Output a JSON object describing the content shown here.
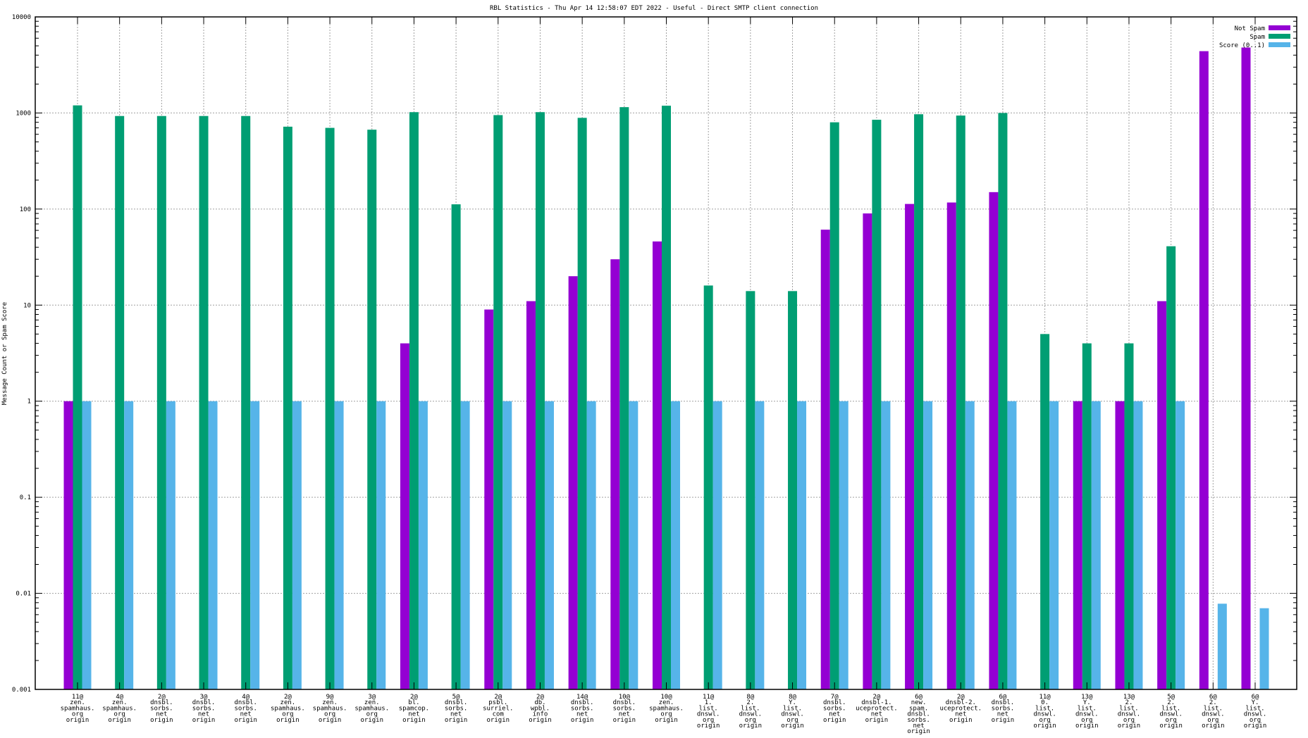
{
  "chart_data": {
    "type": "bar",
    "title": "RBL Statistics - Thu Apr 14 12:58:07 EDT 2022 - Useful - Direct SMTP client connection",
    "xlabel": "",
    "ylabel": "Message Count or Spam Score",
    "yscale": "log",
    "ylim": [
      0.001,
      10000
    ],
    "yticks": [
      "0.001",
      "0.01",
      "0.1",
      "1",
      "10",
      "100",
      "1000",
      "10000"
    ],
    "grid": true,
    "legend_position": "top-right",
    "categories": [
      [
        "11@",
        "zen.",
        "spamhaus.",
        "org",
        "origin"
      ],
      [
        "4@",
        "zen.",
        "spamhaus.",
        "org",
        "origin"
      ],
      [
        "2@",
        "dnsbl.",
        "sorbs.",
        "net",
        "origin"
      ],
      [
        "3@",
        "dnsbl.",
        "sorbs.",
        "net",
        "origin"
      ],
      [
        "4@",
        "dnsbl.",
        "sorbs.",
        "net",
        "origin"
      ],
      [
        "2@",
        "zen.",
        "spamhaus.",
        "org",
        "origin"
      ],
      [
        "9@",
        "zen.",
        "spamhaus.",
        "org",
        "origin"
      ],
      [
        "3@",
        "zen.",
        "spamhaus.",
        "org",
        "origin"
      ],
      [
        "2@",
        "bl.",
        "spamcop.",
        "net",
        "origin"
      ],
      [
        "5@",
        "dnsbl.",
        "sorbs.",
        "net",
        "origin"
      ],
      [
        "2@",
        "psbl.",
        "surriel.",
        "com",
        "origin"
      ],
      [
        "2@",
        "db.",
        "wpbl.",
        "info",
        "origin"
      ],
      [
        "14@",
        "dnsbl.",
        "sorbs.",
        "net",
        "origin"
      ],
      [
        "10@",
        "dnsbl.",
        "sorbs.",
        "net",
        "origin"
      ],
      [
        "10@",
        "zen.",
        "spamhaus.",
        "org",
        "origin"
      ],
      [
        "11@",
        "1.",
        "list.",
        "dnswl.",
        "org",
        "origin"
      ],
      [
        "8@",
        "2.",
        "list.",
        "dnswl.",
        "org",
        "origin"
      ],
      [
        "8@",
        "Y.",
        "list.",
        "dnswl.",
        "org",
        "origin"
      ],
      [
        "7@",
        "dnsbl.",
        "sorbs.",
        "net",
        "origin"
      ],
      [
        "2@",
        "dnsbl-1.",
        "uceprotect.",
        "net",
        "origin"
      ],
      [
        "6@",
        "new.",
        "spam.",
        "dnsbl.",
        "sorbs.",
        "net",
        "origin"
      ],
      [
        "2@",
        "dnsbl-2.",
        "uceprotect.",
        "net",
        "origin"
      ],
      [
        "6@",
        "dnsbl.",
        "sorbs.",
        "net",
        "origin"
      ],
      [
        "11@",
        "0.",
        "list.",
        "dnswl.",
        "org",
        "origin"
      ],
      [
        "13@",
        "Y.",
        "list.",
        "dnswl.",
        "org",
        "origin"
      ],
      [
        "13@",
        "2.",
        "list.",
        "dnswl.",
        "org",
        "origin"
      ],
      [
        "5@",
        "2.",
        "list.",
        "dnswl.",
        "org",
        "origin"
      ],
      [
        "6@",
        "2.",
        "list.",
        "dnswl.",
        "org",
        "origin"
      ],
      [
        "6@",
        "Y.",
        "list.",
        "dnswl.",
        "org",
        "origin"
      ]
    ],
    "series": [
      {
        "name": "Not Spam",
        "color": "#9400d3",
        "values": [
          1,
          null,
          null,
          null,
          null,
          null,
          null,
          null,
          4,
          null,
          9,
          11,
          20,
          30,
          46,
          null,
          null,
          null,
          61,
          90,
          113,
          117,
          150,
          null,
          1,
          1,
          11,
          4400,
          4800
        ]
      },
      {
        "name": "Spam",
        "color": "#009e73",
        "values": [
          1200,
          930,
          930,
          930,
          930,
          720,
          700,
          670,
          1020,
          112,
          950,
          1020,
          890,
          1150,
          1190,
          16,
          14,
          14,
          800,
          850,
          970,
          940,
          1000,
          5,
          4,
          4,
          41,
          null,
          null
        ]
      },
      {
        "name": "Score (0..1)",
        "color": "#56b4e9",
        "values": [
          1,
          1,
          1,
          1,
          1,
          1,
          1,
          1,
          1,
          1,
          1,
          1,
          1,
          1,
          1,
          1,
          1,
          1,
          1,
          1,
          1,
          1,
          1,
          1,
          1,
          1,
          1,
          0.0078,
          0.007
        ]
      }
    ]
  }
}
